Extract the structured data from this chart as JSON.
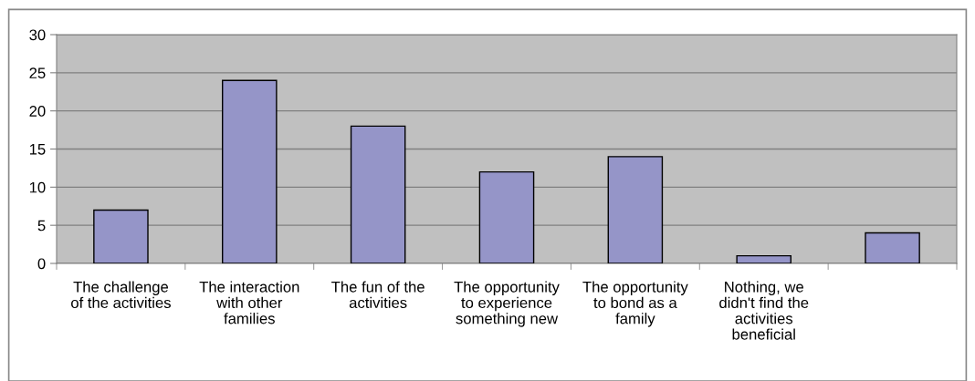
{
  "chart_data": {
    "type": "bar",
    "categories": [
      "The challenge\nof the activities",
      "The interaction\nwith other\nfamilies",
      "The fun of the\nactivities",
      "The opportunity\nto experience\nsomething new",
      "The opportunity\nto bond as a\nfamily",
      "Nothing, we\ndidn't find the\nactivities\nbeneficial",
      null
    ],
    "values": [
      7,
      24,
      18,
      12,
      14,
      1,
      4
    ],
    "color": "#9595c8",
    "ylim": [
      0,
      30
    ],
    "yticks": [
      0,
      5,
      10,
      15,
      20,
      25,
      30
    ],
    "grid": "y"
  }
}
